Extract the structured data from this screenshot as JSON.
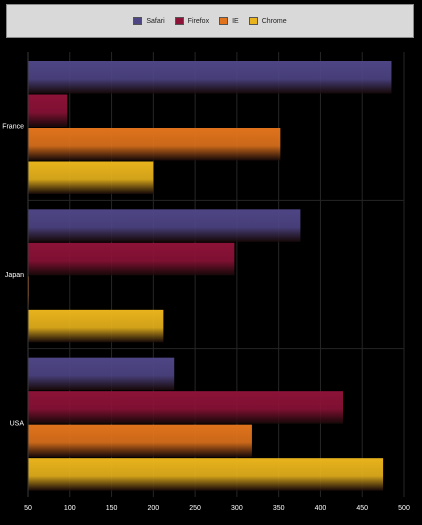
{
  "chart_data": {
    "type": "bar",
    "orientation": "horizontal",
    "title": "",
    "xlabel": "",
    "ylabel": "",
    "categories": [
      "France",
      "Japan",
      "USA"
    ],
    "series": [
      {
        "name": "Safari",
        "color": "#4e4585",
        "values": [
          485,
          376,
          225
        ]
      },
      {
        "name": "Firefox",
        "color": "#8c1238",
        "values": [
          97,
          297,
          427
        ]
      },
      {
        "name": "IE",
        "color": "#e0731c",
        "values": [
          352,
          51,
          318
        ]
      },
      {
        "name": "Chrome",
        "color": "#e8b31c",
        "values": [
          200,
          212,
          475
        ]
      }
    ],
    "xlim": [
      50,
      500
    ],
    "x_ticks": [
      50,
      100,
      150,
      200,
      250,
      300,
      350,
      400,
      450,
      500
    ],
    "legend_position": "top",
    "grid": true
  }
}
